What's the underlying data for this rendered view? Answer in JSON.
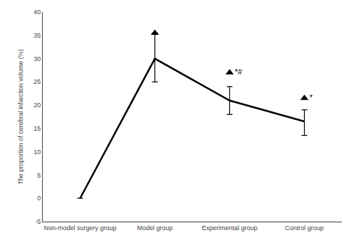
{
  "chart_data": {
    "type": "line",
    "categories": [
      "Non-model surgery group",
      "Model group",
      "Experimental group",
      "Control group"
    ],
    "series": [
      {
        "color": "#000000",
        "values": [
          0.0,
          30.0,
          21.0,
          16.5
        ],
        "error_upper": [
          0.0,
          5.5,
          3.0,
          2.5
        ],
        "error_lower": [
          0.0,
          5.0,
          3.0,
          3.0
        ]
      }
    ],
    "annotations": [
      {
        "category": "Model group",
        "y": 35.5,
        "marker": "triangle",
        "color": "#000000"
      },
      {
        "category": "Experimental group",
        "y": 27.0,
        "label": "*#",
        "marker": "triangle",
        "color": "#000000"
      },
      {
        "category": "Control group",
        "y": 21.5,
        "label": "*",
        "marker": "triangle",
        "color": "#000000"
      }
    ],
    "ylabel": "The proportion of cerebral infarction volume (%)",
    "ylim": [
      -5,
      40
    ],
    "yticks": [
      -5,
      0,
      5,
      10,
      15,
      20,
      25,
      30,
      35,
      40
    ],
    "grid": false
  }
}
